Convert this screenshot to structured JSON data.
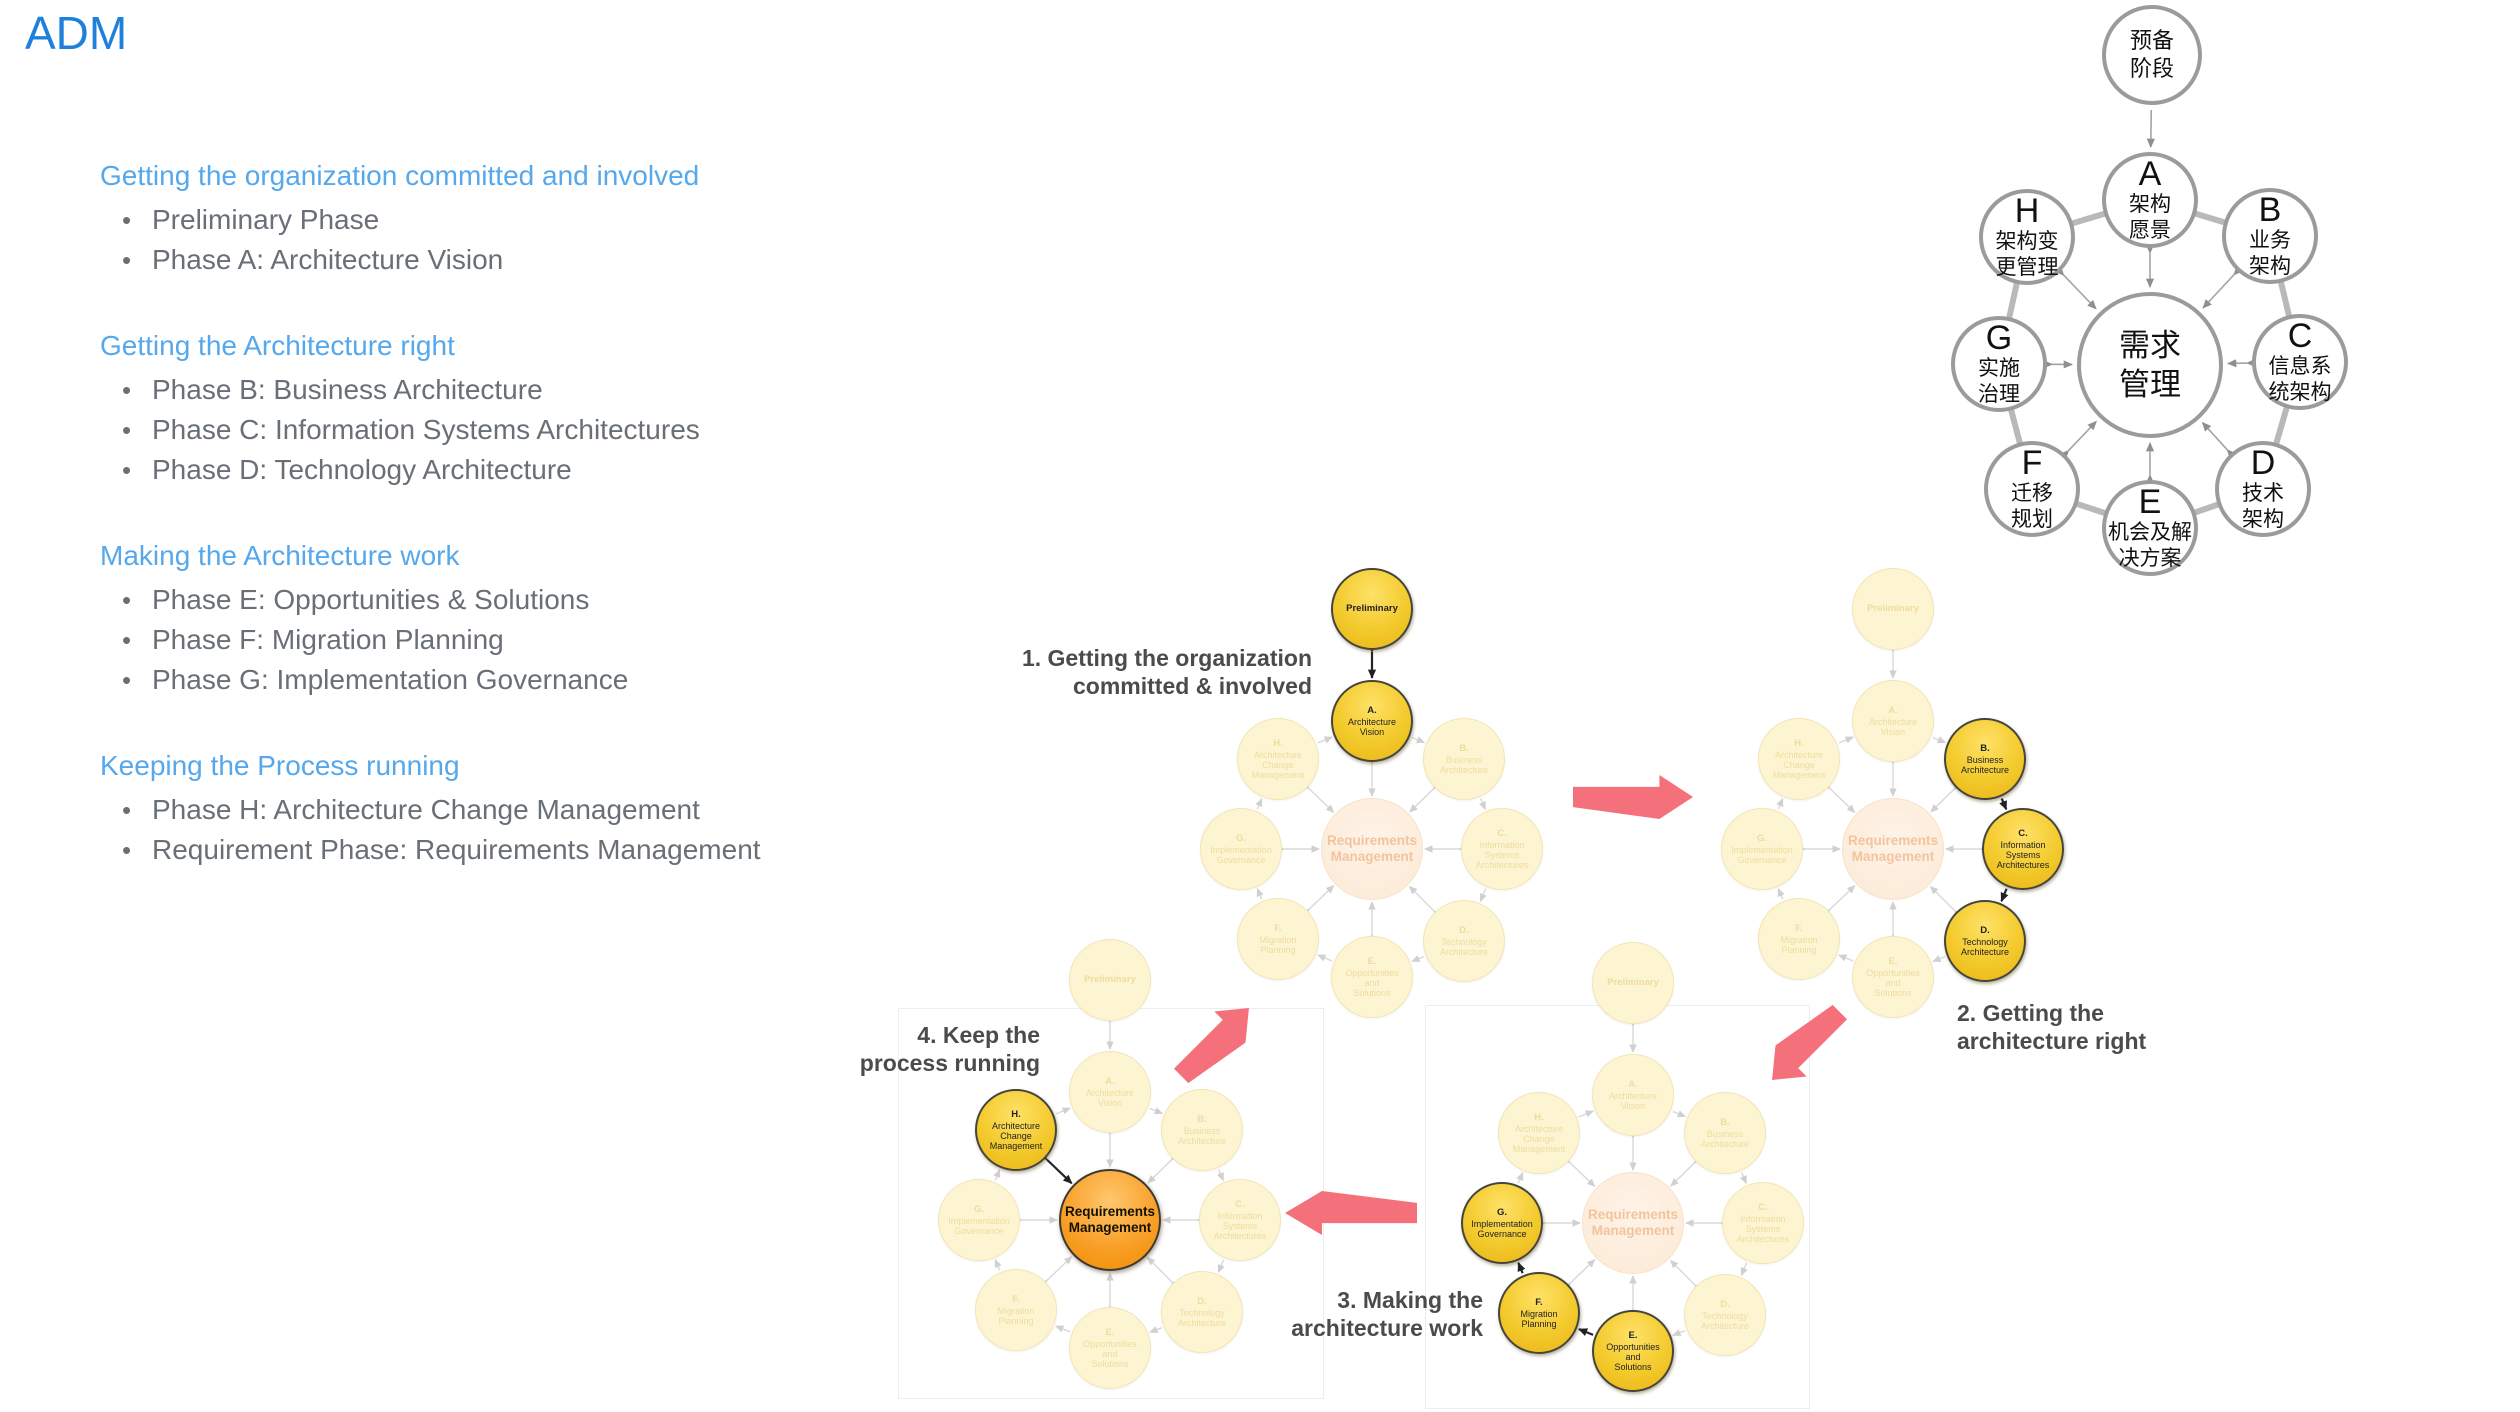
{
  "title": "ADM",
  "outline": {
    "sections": [
      {
        "heading": "Getting the organization committed and involved",
        "items": [
          "Preliminary Phase",
          "Phase A: Architecture Vision"
        ]
      },
      {
        "heading": "Getting the Architecture right",
        "items": [
          "Phase B: Business Architecture",
          "Phase C: Information Systems Architectures",
          "Phase D: Technology Architecture"
        ]
      },
      {
        "heading": "Making the Architecture work",
        "items": [
          "Phase E: Opportunities & Solutions",
          "Phase F: Migration Planning",
          "Phase G: Implementation Governance"
        ]
      },
      {
        "heading": "Keeping the Process running",
        "items": [
          "Phase H: Architecture Change Management",
          "Requirement Phase: Requirements Management"
        ]
      }
    ]
  },
  "zh_diagram": {
    "nodes": {
      "prelim": {
        "lines": [
          "预备",
          "阶段"
        ]
      },
      "A": {
        "letter": "A",
        "lines": [
          "架构",
          "愿景"
        ]
      },
      "B": {
        "letter": "B",
        "lines": [
          "业务",
          "架构"
        ]
      },
      "C": {
        "letter": "C",
        "lines": [
          "信息系",
          "统架构"
        ]
      },
      "D": {
        "letter": "D",
        "lines": [
          "技术",
          "架构"
        ]
      },
      "E": {
        "letter": "E",
        "lines": [
          "机会及解",
          "决方案"
        ]
      },
      "F": {
        "letter": "F",
        "lines": [
          "迁移",
          "规划"
        ]
      },
      "G": {
        "letter": "G",
        "lines": [
          "实施",
          "治理"
        ]
      },
      "H": {
        "letter": "H",
        "lines": [
          "架构变",
          "更管理"
        ]
      },
      "RM": {
        "lines": [
          "需求",
          "管理"
        ]
      }
    }
  },
  "cycle_nodes": {
    "prelim": {
      "lines": [
        "Preliminary"
      ]
    },
    "A": {
      "lines": [
        "A.",
        "Architecture",
        "Vision"
      ]
    },
    "B": {
      "lines": [
        "B.",
        "Business",
        "Architecture"
      ]
    },
    "C": {
      "lines": [
        "C.",
        "Information",
        "Systems",
        "Architectures"
      ]
    },
    "D": {
      "lines": [
        "D.",
        "Technology",
        "Architecture"
      ]
    },
    "E": {
      "lines": [
        "E.",
        "Opportunities",
        "and",
        "Solutions"
      ]
    },
    "F": {
      "lines": [
        "F.",
        "Migration",
        "Planning"
      ]
    },
    "G": {
      "lines": [
        "G.",
        "Implementation",
        "Governance"
      ]
    },
    "H": {
      "lines": [
        "H.",
        "Architecture",
        "Change",
        "Management"
      ]
    },
    "RM": {
      "lines": [
        "Requirements",
        "Management"
      ]
    }
  },
  "cycle_steps": [
    {
      "label_lines": [
        "1. Getting the organization",
        "committed & involved"
      ],
      "highlight": [
        "prelim",
        "A"
      ],
      "flow": [
        [
          "prelim",
          "A"
        ]
      ]
    },
    {
      "label_lines": [
        "2. Getting the",
        "architecture right"
      ],
      "highlight": [
        "B",
        "C",
        "D"
      ],
      "flow": [
        [
          "B",
          "C"
        ],
        [
          "C",
          "D"
        ]
      ]
    },
    {
      "label_lines": [
        "3. Making the",
        "architecture work"
      ],
      "highlight": [
        "E",
        "F",
        "G"
      ],
      "flow": [
        [
          "E",
          "F"
        ],
        [
          "F",
          "G"
        ]
      ]
    },
    {
      "label_lines": [
        "4. Keep the",
        "process running"
      ],
      "highlight": [
        "H",
        "RM"
      ],
      "flow": [
        [
          "H",
          "RM"
        ]
      ]
    }
  ],
  "colors": {
    "title_blue": "#1f80dc",
    "heading_blue": "#55a8ec",
    "body_gray": "#696f76",
    "gold_highlight": "#f3ca2c",
    "pale_yellow": "#fdf5d1",
    "orange_center": "#f9a02a",
    "pale_orange": "#fce9d4",
    "flow_red": "#f4707a",
    "label_gray": "#4b4b4b",
    "zh_circle_border": "#9b9b9b"
  }
}
